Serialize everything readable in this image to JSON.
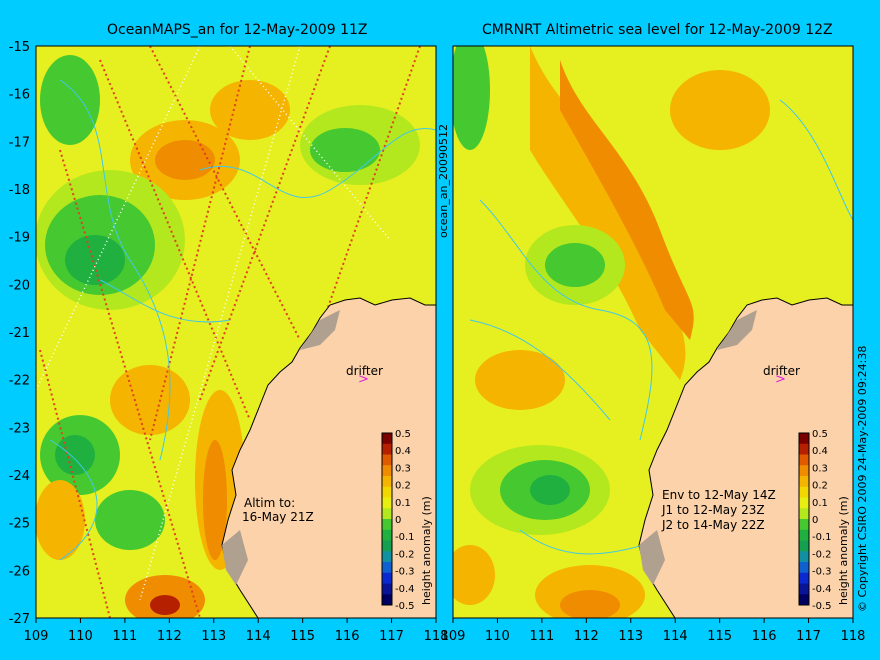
{
  "panels": [
    {
      "title": "OceanMAPS_an for 12-May-2009 11Z",
      "note_lines": [
        "Altim to:",
        "16-May 21Z"
      ]
    },
    {
      "title": "CMRNRT Altimetric sea level  for 12-May-2009 12Z",
      "note_lines": [
        "Env to 12-May 14Z",
        "J1 to 12-May 23Z",
        "J2 to 14-May 22Z"
      ]
    }
  ],
  "middle_label": "ocean_an_20090512",
  "right_label": "© Copyright CSIRO 2009   24-May-2009 09:24:38",
  "drifter_label": "drifter",
  "colorbar": {
    "ticks": [
      "0.5",
      "0.4",
      "0.3",
      "0.2",
      "0.1",
      "0",
      "-0.1",
      "-0.2",
      "-0.3",
      "-0.4",
      "-0.5"
    ],
    "label": "height anomaly (m)",
    "colors": [
      "#7a0000",
      "#b42000",
      "#e05a00",
      "#f08c00",
      "#f5b400",
      "#f2d800",
      "#e8ef10",
      "#b4e81e",
      "#46c830",
      "#20b040",
      "#14a050",
      "#1090a0",
      "#1060d0",
      "#0a2ad0",
      "#0a1496",
      "#000060"
    ]
  },
  "axes": {
    "x_ticks": [
      "109",
      "110",
      "111",
      "112",
      "113",
      "114",
      "115",
      "116",
      "117",
      "118"
    ],
    "y_ticks": [
      "-15",
      "-16",
      "-17",
      "-18",
      "-19",
      "-20",
      "-21",
      "-22",
      "-23",
      "-24",
      "-25",
      "-26",
      "-27"
    ]
  },
  "colors": {
    "ocean": "#e6ef20",
    "land": "#fbd2aa",
    "coast": "#000000",
    "contour": "#40c8e8"
  }
}
